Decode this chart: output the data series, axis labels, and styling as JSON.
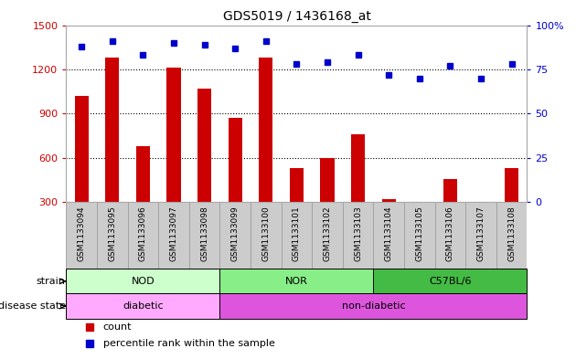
{
  "title": "GDS5019 / 1436168_at",
  "samples": [
    "GSM1133094",
    "GSM1133095",
    "GSM1133096",
    "GSM1133097",
    "GSM1133098",
    "GSM1133099",
    "GSM1133100",
    "GSM1133101",
    "GSM1133102",
    "GSM1133103",
    "GSM1133104",
    "GSM1133105",
    "GSM1133106",
    "GSM1133107",
    "GSM1133108"
  ],
  "counts": [
    1020,
    1280,
    680,
    1210,
    1070,
    870,
    1280,
    530,
    600,
    760,
    320,
    290,
    460,
    290,
    530
  ],
  "percentiles": [
    88,
    91,
    83,
    90,
    89,
    87,
    91,
    78,
    79,
    83,
    72,
    70,
    77,
    70,
    78
  ],
  "ylim_left": [
    300,
    1500
  ],
  "ylim_right": [
    0,
    100
  ],
  "yticks_left": [
    300,
    600,
    900,
    1200,
    1500
  ],
  "yticks_right": [
    0,
    25,
    50,
    75,
    100
  ],
  "ytick_right_labels": [
    "0",
    "25",
    "50",
    "75",
    "100%"
  ],
  "bar_color": "#cc0000",
  "dot_color": "#0000cc",
  "strain_groups": [
    {
      "label": "NOD",
      "start": 0,
      "end": 5,
      "color": "#ccffcc"
    },
    {
      "label": "NOR",
      "start": 5,
      "end": 10,
      "color": "#88ee88"
    },
    {
      "label": "C57BL/6",
      "start": 10,
      "end": 15,
      "color": "#44bb44"
    }
  ],
  "disease_groups": [
    {
      "label": "diabetic",
      "start": 0,
      "end": 5,
      "color": "#ffaaff"
    },
    {
      "label": "non-diabetic",
      "start": 5,
      "end": 15,
      "color": "#dd55dd"
    }
  ],
  "strain_label": "strain",
  "disease_label": "disease state",
  "legend_count": "count",
  "legend_percentile": "percentile rank within the sample",
  "bar_width": 0.45,
  "xtick_bg_color": "#cccccc"
}
